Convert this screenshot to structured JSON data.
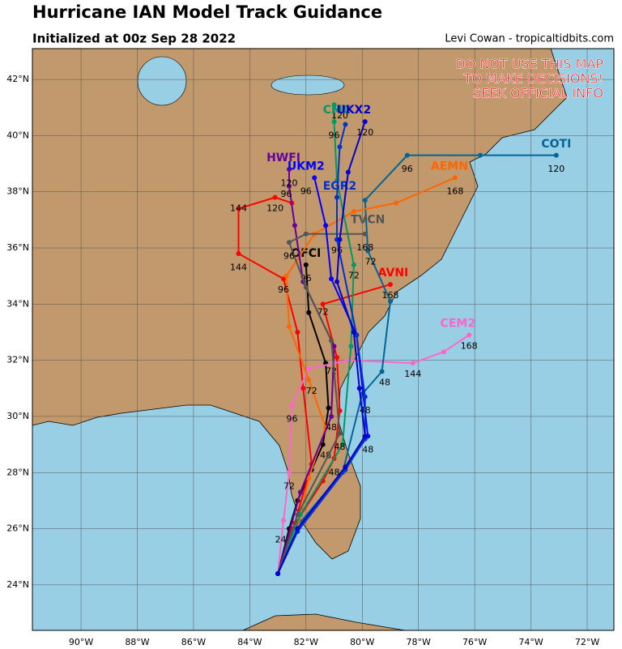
{
  "header": {
    "title": "Hurricane IAN Model Track Guidance",
    "subtitle": "Initialized at 00z Sep 28 2022",
    "credit": "Levi Cowan - tropicaltidbits.com"
  },
  "warning": [
    "DO NOT USE THIS MAP",
    "TO MAKE DECISIONS!",
    "SEEK OFFICIAL INFO"
  ],
  "map": {
    "lonlim": [
      -91.73,
      -71.05
    ],
    "latlim": [
      22.38,
      43.1
    ],
    "lonticks": [
      {
        "value": -90,
        "label": "90°W"
      },
      {
        "value": -88,
        "label": "88°W"
      },
      {
        "value": -86,
        "label": "86°W"
      },
      {
        "value": -84,
        "label": "84°W"
      },
      {
        "value": -82,
        "label": "82°W"
      },
      {
        "value": -80,
        "label": "80°W"
      },
      {
        "value": -78,
        "label": "78°W"
      },
      {
        "value": -76,
        "label": "76°W"
      },
      {
        "value": -74,
        "label": "74°W"
      },
      {
        "value": -72,
        "label": "72°W"
      }
    ],
    "latticks": [
      {
        "value": 24,
        "label": "24°N"
      },
      {
        "value": 26,
        "label": "26°N"
      },
      {
        "value": 28,
        "label": "28°N"
      },
      {
        "value": 30,
        "label": "30°N"
      },
      {
        "value": 32,
        "label": "32°N"
      },
      {
        "value": 34,
        "label": "34°N"
      },
      {
        "value": 36,
        "label": "36°N"
      },
      {
        "value": 38,
        "label": "38°N"
      },
      {
        "value": 40,
        "label": "40°N"
      },
      {
        "value": 42,
        "label": "42°N"
      }
    ],
    "grid": true,
    "tracks": [
      {
        "name": "OFCI",
        "color": "#000000",
        "label_at": [
          -82.0,
          35.8
        ],
        "lon": [
          -83.0,
          -82.6,
          -82.3,
          -81.8,
          -81.4,
          -81.2,
          -81.3,
          -81.9,
          -82.0
        ],
        "lat": [
          24.4,
          26.0,
          27.0,
          28.1,
          29.0,
          30.3,
          31.9,
          33.7,
          35.4
        ],
        "hours": [
          {
            "text": "48",
            "lon": -81.3,
            "lat": 28.6
          },
          {
            "text": "72",
            "lon": -81.1,
            "lat": 31.6
          },
          {
            "text": "96",
            "lon": -82.0,
            "lat": 34.9
          }
        ]
      },
      {
        "color": "#ff0000",
        "lon": [
          -83.0,
          -82.4,
          -81.8,
          -82.1,
          -82.3,
          -82.8,
          -84.4,
          -84.4,
          -83.1,
          -82.5
        ],
        "lat": [
          24.4,
          26.2,
          28.3,
          31.0,
          33.0,
          34.9,
          35.8,
          37.4,
          37.8,
          37.6
        ],
        "hours": [
          {
            "text": "144",
            "lon": -84.4,
            "lat": 35.3
          },
          {
            "text": "144",
            "lon": -84.4,
            "lat": 37.4
          },
          {
            "text": "120",
            "lon": -83.1,
            "lat": 37.4
          }
        ]
      },
      {
        "name": "AVNI",
        "color": "#ff0000",
        "label_at": [
          -78.9,
          35.1
        ],
        "lon": [
          -83.0,
          -82.5,
          -81.4,
          -81.0,
          -80.8,
          -80.9,
          -81.4,
          -79.0
        ],
        "lat": [
          24.4,
          26.0,
          27.7,
          28.5,
          30.2,
          32.1,
          34.0,
          34.7
        ],
        "hours": [
          {
            "text": "48",
            "lon": -81.0,
            "lat": 28.0
          },
          {
            "text": "72",
            "lon": -81.4,
            "lat": 33.7
          },
          {
            "text": "168",
            "lon": -79.0,
            "lat": 34.3
          }
        ]
      },
      {
        "name": "CEM2",
        "color": "#ff66cc",
        "label_at": [
          -76.6,
          33.3
        ],
        "lon": [
          -83.0,
          -82.8,
          -82.6,
          -82.5,
          -81.9,
          -80.5,
          -78.2,
          -77.1,
          -76.2
        ],
        "lat": [
          24.4,
          26.3,
          28.0,
          30.4,
          31.7,
          32.0,
          31.9,
          32.3,
          32.9
        ],
        "hours": [
          {
            "text": "24",
            "lon": -82.9,
            "lat": 25.6
          },
          {
            "text": "72",
            "lon": -82.6,
            "lat": 27.5
          },
          {
            "text": "96",
            "lon": -82.5,
            "lat": 29.9
          },
          {
            "text": "144",
            "lon": -78.2,
            "lat": 31.5
          },
          {
            "text": "168",
            "lon": -76.2,
            "lat": 32.5
          }
        ]
      },
      {
        "name": "COTI",
        "color": "#006699",
        "label_at": [
          -73.1,
          39.7
        ],
        "lon": [
          -83.0,
          -82.4,
          -80.7,
          -80.0,
          -79.3,
          -79.0,
          -79.8,
          -79.9,
          -78.4,
          -75.8,
          -73.1
        ],
        "lat": [
          24.4,
          26.0,
          28.0,
          30.8,
          31.6,
          34.1,
          35.9,
          37.7,
          39.3,
          39.3,
          39.3
        ],
        "hours": [
          {
            "text": "48",
            "lon": -79.2,
            "lat": 31.2
          },
          {
            "text": "72",
            "lon": -79.7,
            "lat": 35.5
          },
          {
            "text": "96",
            "lon": -78.4,
            "lat": 38.8
          },
          {
            "text": "120",
            "lon": -73.1,
            "lat": 38.8
          }
        ]
      },
      {
        "name": "AEMN",
        "color": "#ff6600",
        "label_at": [
          -76.9,
          38.9
        ],
        "lon": [
          -83.0,
          -82.3,
          -81.9,
          -81.3,
          -81.9,
          -82.6,
          -82.7,
          -81.7,
          -80.3,
          -78.8,
          -76.7
        ],
        "lat": [
          24.4,
          26.0,
          27.8,
          29.6,
          31.3,
          33.2,
          35.0,
          36.5,
          37.3,
          37.6,
          38.5
        ],
        "hours": [
          {
            "text": "72",
            "lon": -81.8,
            "lat": 30.9
          },
          {
            "text": "96",
            "lon": -82.8,
            "lat": 34.5
          },
          {
            "text": "168",
            "lon": -76.7,
            "lat": 38.0
          }
        ]
      },
      {
        "name": "CMC",
        "color": "#009966",
        "label_at": [
          -80.9,
          40.9
        ],
        "lon": [
          -83.0,
          -82.2,
          -80.7,
          -80.4,
          -80.3,
          -80.9,
          -81.0,
          -81.0
        ],
        "lat": [
          24.4,
          26.5,
          29.0,
          32.5,
          35.4,
          38.4,
          40.5,
          41.1
        ],
        "hours": [
          {
            "text": "72",
            "lon": -80.3,
            "lat": 35.0
          },
          {
            "text": "96",
            "lon": -81.0,
            "lat": 40.0
          },
          {
            "text": "120",
            "lon": -80.8,
            "lat": 40.7
          }
        ]
      },
      {
        "name": "HWFI",
        "color": "#660099",
        "label_at": [
          -82.8,
          39.2
        ],
        "lon": [
          -83.0,
          -82.2,
          -81.1,
          -81.0,
          -82.1,
          -82.4,
          -82.6,
          -82.6
        ],
        "lat": [
          24.4,
          27.3,
          30.0,
          32.5,
          34.8,
          36.8,
          38.2,
          38.8
        ],
        "hours": [
          {
            "text": "48",
            "lon": -81.1,
            "lat": 29.6
          },
          {
            "text": "96",
            "lon": -82.7,
            "lat": 37.9
          },
          {
            "text": "120",
            "lon": -82.6,
            "lat": 38.3
          }
        ]
      },
      {
        "name": "TVCN",
        "color": "#555555",
        "label_at": [
          -79.8,
          37.0
        ],
        "lon": [
          -83.0,
          -82.3,
          -80.8,
          -81.1,
          -82.0,
          -82.6,
          -82.0,
          -79.9
        ],
        "lat": [
          24.4,
          26.5,
          29.4,
          32.7,
          34.6,
          36.2,
          36.5,
          36.5
        ],
        "hours": [
          {
            "text": "48",
            "lon": -80.8,
            "lat": 28.9
          },
          {
            "text": "96",
            "lon": -82.6,
            "lat": 35.7
          },
          {
            "text": "168",
            "lon": -79.9,
            "lat": 36.0
          }
        ]
      },
      {
        "name": "UKM2",
        "color": "#0000ff",
        "label_at": [
          -82.0,
          38.9
        ],
        "lon": [
          -83.0,
          -82.3,
          -80.6,
          -79.8,
          -80.2,
          -81.1,
          -81.3,
          -81.7
        ],
        "lat": [
          24.4,
          26.0,
          28.2,
          29.3,
          32.9,
          34.9,
          36.8,
          38.5
        ],
        "hours": [
          {
            "text": "48",
            "lon": -79.8,
            "lat": 28.8
          },
          {
            "text": "96",
            "lon": -82.0,
            "lat": 38.0
          }
        ]
      },
      {
        "name": "EGR2",
        "color": "#0033cc",
        "label_at": [
          -80.8,
          38.2
        ],
        "lon": [
          -83.0,
          -82.3,
          -80.6,
          -79.9,
          -79.9,
          -80.2,
          -80.9,
          -80.9,
          -80.8,
          -80.6
        ],
        "lat": [
          24.4,
          25.9,
          28.1,
          29.2,
          30.7,
          32.9,
          36.3,
          37.8,
          39.6,
          40.4
        ],
        "hours": [
          {
            "text": "48",
            "lon": -79.9,
            "lat": 30.2
          },
          {
            "text": "96",
            "lon": -80.9,
            "lat": 35.9
          }
        ]
      },
      {
        "name": "UKX2",
        "color": "#0000cc",
        "label_at": [
          -80.3,
          40.9
        ],
        "lon": [
          -83.0,
          -82.3,
          -80.6,
          -79.9,
          -80.1,
          -80.3,
          -80.9,
          -80.8,
          -80.5,
          -79.9
        ],
        "lat": [
          24.4,
          26.0,
          28.2,
          29.3,
          31.0,
          33.0,
          34.8,
          36.3,
          38.7,
          40.5
        ],
        "hours": [
          {
            "text": "120",
            "lon": -79.9,
            "lat": 40.1
          }
        ]
      }
    ]
  }
}
